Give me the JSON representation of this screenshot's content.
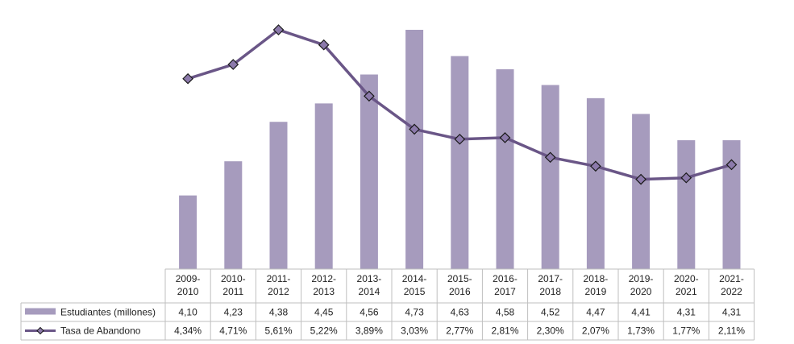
{
  "chart_data": {
    "type": "bar+line",
    "categories": [
      [
        "2009-",
        "2010"
      ],
      [
        "2010-",
        "2011"
      ],
      [
        "2011-",
        "2012"
      ],
      [
        "2012-",
        "2013"
      ],
      [
        "2013-",
        "2014"
      ],
      [
        "2014-",
        "2015"
      ],
      [
        "2015-",
        "2016"
      ],
      [
        "2016-",
        "2017"
      ],
      [
        "2017-",
        "2018"
      ],
      [
        "2018-",
        "2019"
      ],
      [
        "2019-",
        "2020"
      ],
      [
        "2020-",
        "2021"
      ],
      [
        "2021-",
        "2022"
      ]
    ],
    "series": [
      {
        "name": "Estudiantes (millones)",
        "kind": "bar",
        "color": "#a69bbd",
        "values": [
          4.1,
          4.23,
          4.38,
          4.45,
          4.56,
          4.73,
          4.63,
          4.58,
          4.52,
          4.47,
          4.41,
          4.31,
          4.31
        ],
        "labels": [
          "4,10",
          "4,23",
          "4,38",
          "4,45",
          "4,56",
          "4,73",
          "4,63",
          "4,58",
          "4,52",
          "4,47",
          "4,41",
          "4,31",
          "4,31"
        ],
        "axis_range": [
          3.82,
          4.73
        ]
      },
      {
        "name": "Tasa de Abandono",
        "kind": "line",
        "color": "#6a5687",
        "marker_color": "#8c7aab",
        "values": [
          4.34,
          4.71,
          5.61,
          5.22,
          3.89,
          3.03,
          2.77,
          2.81,
          2.3,
          2.07,
          1.73,
          1.77,
          2.11
        ],
        "labels": [
          "4,34%",
          "4,71%",
          "5,61%",
          "5,22%",
          "3,89%",
          "3,03%",
          "2,77%",
          "2,81%",
          "2,30%",
          "2,07%",
          "1,73%",
          "1,77%",
          "2,11%"
        ],
        "axis_range": [
          -0.6,
          5.61
        ]
      }
    ],
    "data_table": true,
    "grid": false
  }
}
